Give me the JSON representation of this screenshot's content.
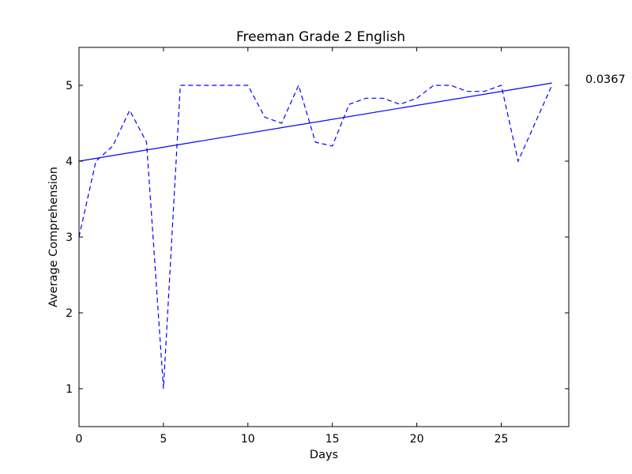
{
  "chart_data": {
    "type": "line",
    "title": "Freeman Grade 2 English",
    "xlabel": "Days",
    "ylabel": "Average Comprehension",
    "xlim": [
      0,
      29
    ],
    "ylim": [
      0.5,
      5.5
    ],
    "x_ticks": [
      0,
      5,
      10,
      15,
      20,
      25
    ],
    "y_ticks": [
      1,
      2,
      3,
      4,
      5
    ],
    "grid": false,
    "legend": "none",
    "annotation": "0.0367",
    "series": [
      {
        "style": "dashed",
        "color": "#0000ff",
        "x": [
          0,
          1,
          2,
          3,
          4,
          5,
          6,
          7,
          8,
          9,
          10,
          11,
          12,
          13,
          14,
          15,
          16,
          17,
          18,
          19,
          20,
          21,
          22,
          23,
          24,
          25,
          26,
          27,
          28
        ],
        "y": [
          3.0,
          4.0,
          4.2,
          4.67,
          4.25,
          1.0,
          5.0,
          5.0,
          5.0,
          5.0,
          5.0,
          4.58,
          4.5,
          5.0,
          4.25,
          4.2,
          4.75,
          4.83,
          4.83,
          4.75,
          4.83,
          5.0,
          5.0,
          4.92,
          4.92,
          5.0,
          4.0,
          4.5,
          5.0
        ]
      },
      {
        "style": "solid",
        "color": "#0000ff",
        "x": [
          0,
          28
        ],
        "y": [
          4.0,
          5.03
        ]
      }
    ]
  }
}
